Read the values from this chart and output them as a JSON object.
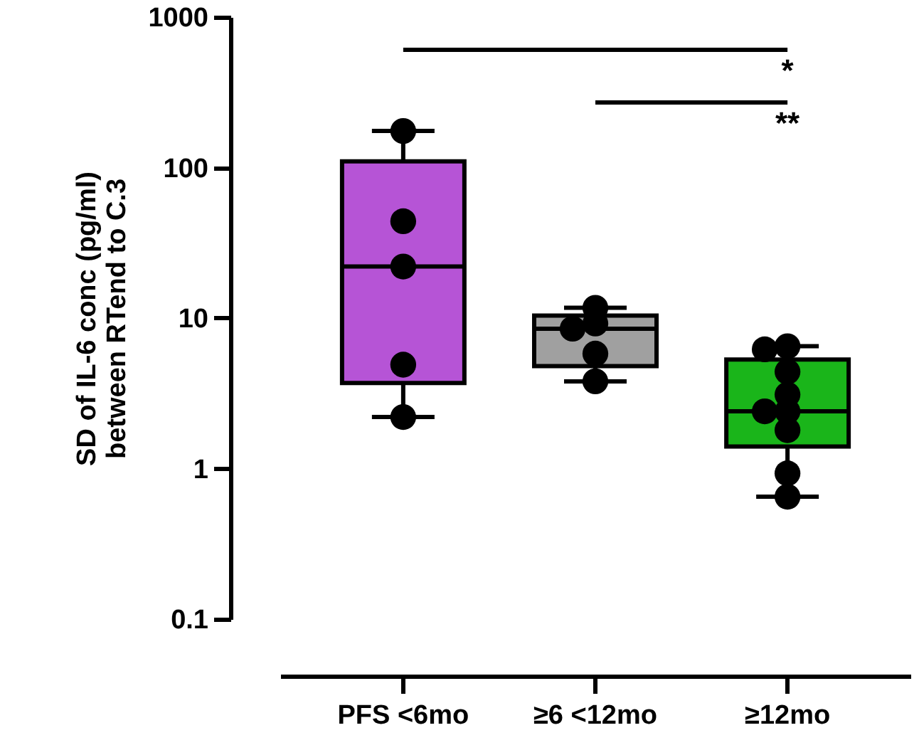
{
  "chart_data": {
    "type": "box",
    "ylabel": "SD of IL-6 conc (pg/ml)\nbetween RTend to C.3",
    "categories": [
      "PFS <6mo",
      "≥6 <12mo",
      "≥12mo"
    ],
    "series": [
      {
        "type": "box",
        "colors": [
          "#b654d6",
          "#a0a0a0",
          "#1ab51a"
        ],
        "boxes": [
          {
            "low": 2.2,
            "q1": 3.7,
            "median": 22,
            "q3": 110,
            "high": 175
          },
          {
            "low": 3.8,
            "q1": 4.8,
            "median": 8.5,
            "q3": 10.4,
            "high": 11.7
          },
          {
            "low": 0.65,
            "q1": 1.4,
            "median": 2.4,
            "q3": 5.3,
            "high": 6.5
          }
        ]
      },
      {
        "type": "scatter",
        "color": "#000000",
        "x": [
          "PFS <6mo",
          "PFS <6mo",
          "PFS <6mo",
          "PFS <6mo",
          "PFS <6mo",
          "≥6 <12mo",
          "≥6 <12mo",
          "≥6 <12mo",
          "≥6 <12mo",
          "≥6 <12mo",
          "≥12mo",
          "≥12mo",
          "≥12mo",
          "≥12mo",
          "≥12mo",
          "≥12mo",
          "≥12mo",
          "≥12mo",
          "≥12mo"
        ],
        "values": [
          175,
          44,
          22,
          4.9,
          2.2,
          11.7,
          9.2,
          8.5,
          5.8,
          3.8,
          6.5,
          6.2,
          4.4,
          3.1,
          2.4,
          2.4,
          1.8,
          0.93,
          0.65
        ]
      }
    ],
    "marker": "circle",
    "log": true,
    "ylim": [
      0.1,
      1000
    ],
    "yticks": [
      0.1,
      1,
      10,
      100,
      1000
    ],
    "grid": false,
    "annotations": [
      "*",
      "**"
    ]
  }
}
